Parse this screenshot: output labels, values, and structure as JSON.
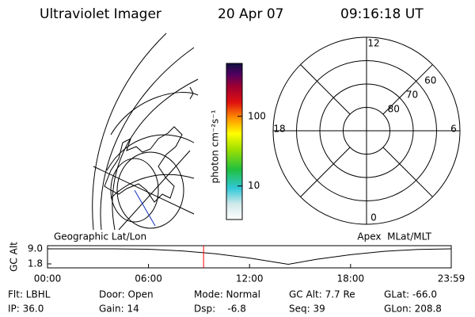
{
  "header": {
    "title": "Ultraviolet Imager",
    "date": "20 Apr 07",
    "time": "09:16:18 UT"
  },
  "colorbar": {
    "label": "photon cm⁻²s⁻¹",
    "log_scale": true,
    "clim": [
      3.3,
      575
    ],
    "ticks": [
      10,
      100
    ]
  },
  "polar": {
    "mlt_labels": [
      "12",
      "18",
      "6",
      "0"
    ],
    "lat_rings": [
      60,
      70,
      80
    ]
  },
  "chart_data": {
    "type": "line",
    "ylabel": "GC Alt",
    "left_label": "Geographic Lat/Lon",
    "right_label": "Apex  MLat/MLT",
    "x": [
      0,
      4,
      6,
      8,
      10,
      12,
      14.3,
      16,
      18,
      20,
      22,
      23.98
    ],
    "series": [
      {
        "color": "#000000",
        "values": [
          9.0,
          9.0,
          8.8,
          8.0,
          6.6,
          4.6,
          1.6,
          4.0,
          6.2,
          7.8,
          8.7,
          9.0
        ]
      }
    ],
    "marker_x": 9.27,
    "marker_color": "#ff0000",
    "xlim": [
      0,
      23.98
    ],
    "ylim": [
      -0.1,
      10.5
    ],
    "xticks": [
      {
        "value": 0,
        "label": "00:00"
      },
      {
        "value": 6,
        "label": "06:00"
      },
      {
        "value": 12,
        "label": "12:00"
      },
      {
        "value": 18,
        "label": "18:00"
      },
      {
        "value": 23.98,
        "label": "23:59"
      }
    ],
    "yticks": [
      {
        "value": 9,
        "label": "9.0"
      },
      1.8
    ]
  },
  "footer": {
    "rows": [
      [
        "Flt: LBHL",
        "Door: Open",
        "Mode: Normal",
        "GC Alt: 7.7 Re",
        "GLat: -66.0"
      ],
      [
        "IP: 36.0",
        "Gain: 14",
        "Dsp:    -6.8",
        "Seq: 39",
        "GLon: 208.8"
      ]
    ]
  }
}
